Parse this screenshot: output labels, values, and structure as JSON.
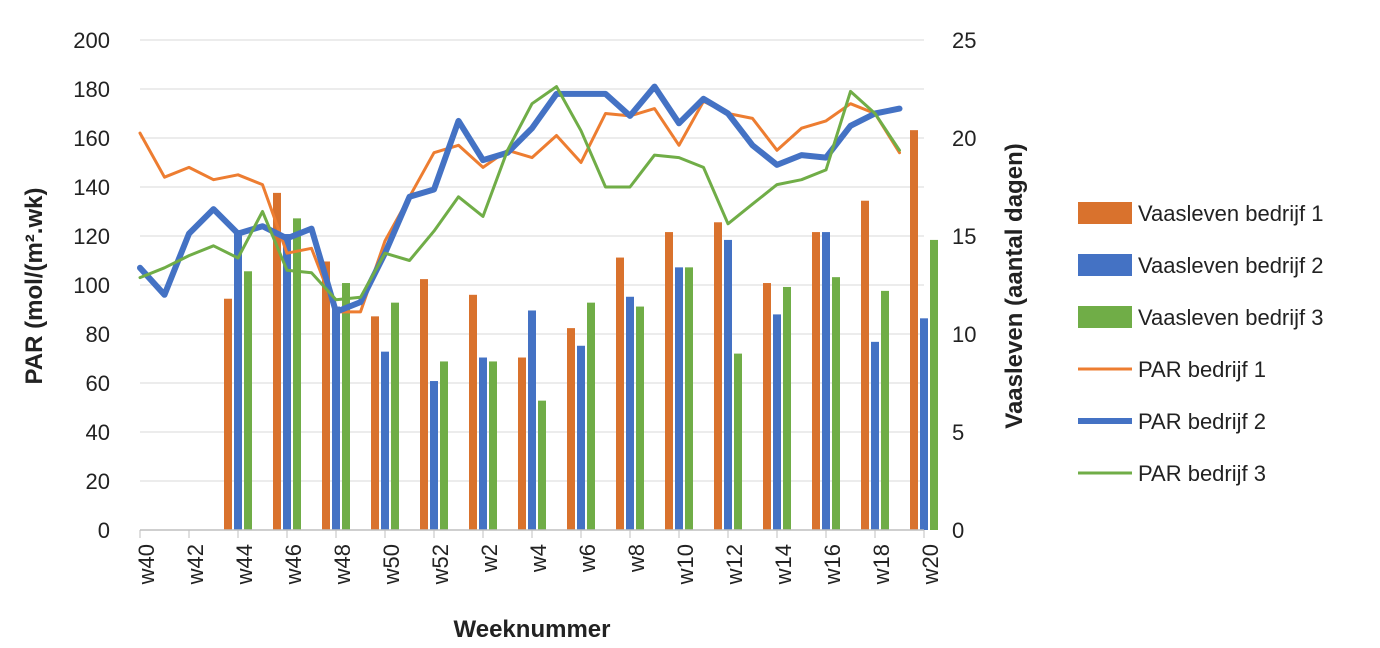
{
  "chart_data": {
    "type": "bar",
    "xlabel": "Weeknummer",
    "ylabel": "PAR (mol/(m².wk)",
    "y2label": "Vaasleven (aantal dagen)",
    "ylim": [
      0,
      200
    ],
    "y2lim": [
      0,
      25
    ],
    "yticks": [
      "0",
      "20",
      "40",
      "60",
      "80",
      "100",
      "120",
      "140",
      "160",
      "180",
      "200"
    ],
    "y2ticks": [
      "0",
      "5",
      "10",
      "15",
      "20",
      "25"
    ],
    "grid": true,
    "legend_position": "right",
    "categories": [
      "w40",
      "w41",
      "w42",
      "w43",
      "w44",
      "w45",
      "w46",
      "w47",
      "w48",
      "w49",
      "w50",
      "w51",
      "w52",
      "w1",
      "w2",
      "w3",
      "w4",
      "w5",
      "w6",
      "w7",
      "w8",
      "w9",
      "w10",
      "w11",
      "w12",
      "w13",
      "w14",
      "w15",
      "w16",
      "w17",
      "w18",
      "w19",
      "w20"
    ],
    "category_labels": [
      "w40",
      "w42",
      "w44",
      "w46",
      "w48",
      "w50",
      "w52",
      "w2",
      "w4",
      "w6",
      "w8",
      "w10",
      "w12",
      "w14",
      "w16",
      "w18",
      "w20"
    ],
    "bar_series": [
      {
        "name": "Vaasleven bedrijf 1",
        "color": "#D9722D",
        "axis": "right",
        "values": [
          null,
          null,
          null,
          null,
          11.8,
          null,
          17.2,
          null,
          13.7,
          null,
          10.9,
          null,
          12.8,
          null,
          12.0,
          null,
          8.8,
          null,
          10.3,
          null,
          13.9,
          null,
          15.2,
          null,
          15.7,
          null,
          12.6,
          null,
          15.2,
          null,
          16.8,
          null,
          20.4
        ]
      },
      {
        "name": "Vaasleven bedrijf 2",
        "color": "#4472C4",
        "axis": "right",
        "values": [
          null,
          null,
          null,
          null,
          15.3,
          null,
          15.1,
          null,
          11.4,
          null,
          9.1,
          null,
          7.6,
          null,
          8.8,
          null,
          11.2,
          null,
          9.4,
          null,
          11.9,
          null,
          13.4,
          null,
          14.8,
          null,
          11.0,
          null,
          15.2,
          null,
          9.6,
          null,
          10.8
        ]
      },
      {
        "name": "Vaasleven bedrijf 3",
        "color": "#70AD47",
        "axis": "right",
        "values": [
          null,
          null,
          null,
          null,
          13.2,
          null,
          15.9,
          null,
          12.6,
          null,
          11.6,
          null,
          8.6,
          null,
          8.6,
          null,
          6.6,
          null,
          11.6,
          null,
          11.4,
          null,
          13.4,
          null,
          9.0,
          null,
          12.4,
          null,
          12.9,
          null,
          12.2,
          null,
          14.8
        ]
      }
    ],
    "line_series": [
      {
        "name": "PAR bedrijf 1",
        "color": "#ED7D31",
        "axis": "left",
        "width": 3,
        "values": [
          162,
          144,
          148,
          143,
          145,
          141,
          113,
          115,
          89,
          89,
          118,
          136,
          154,
          157,
          148,
          155,
          152,
          161,
          150,
          170,
          169,
          172,
          157,
          175,
          170,
          168,
          155,
          164,
          167,
          174,
          170,
          154,
          null
        ]
      },
      {
        "name": "PAR bedrijf 2",
        "color": "#4472C4",
        "axis": "left",
        "width": 6,
        "values": [
          107,
          96,
          121,
          131,
          121,
          124,
          119,
          123,
          89,
          93,
          113,
          136,
          139,
          167,
          151,
          154,
          164,
          178,
          178,
          178,
          169,
          181,
          166,
          176,
          170,
          157,
          149,
          153,
          152,
          165,
          170,
          172,
          null
        ]
      },
      {
        "name": "PAR bedrijf 3",
        "color": "#70AD47",
        "axis": "left",
        "width": 3,
        "values": [
          103,
          107,
          112,
          116,
          111,
          130,
          106,
          105,
          94,
          95,
          113,
          110,
          122,
          136,
          128,
          155,
          174,
          181,
          163,
          140,
          140,
          153,
          152,
          148,
          125,
          133,
          141,
          143,
          147,
          179,
          170,
          155,
          null
        ]
      }
    ],
    "legend": [
      "Vaasleven bedrijf 1",
      "Vaasleven bedrijf 2",
      "Vaasleven bedrijf 3",
      "PAR bedrijf 1",
      "PAR bedrijf 2",
      "PAR bedrijf 3"
    ]
  }
}
